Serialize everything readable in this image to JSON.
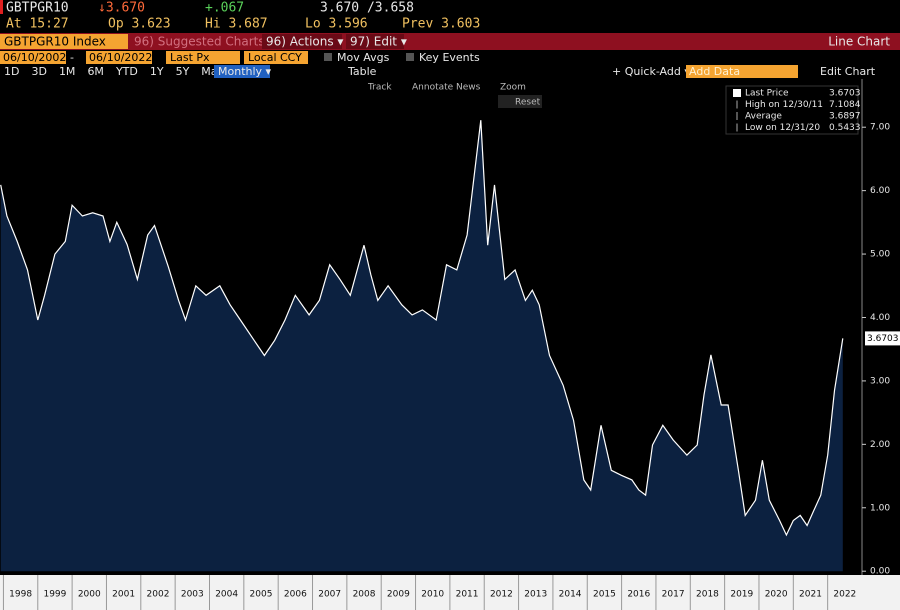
{
  "quote": {
    "ticker": "GBTPGR10",
    "last": "↓3.670",
    "change": "+.067",
    "bid_ask": "3.670 /3.658",
    "time": "At 15:27",
    "open": "Op 3.623",
    "high": "Hi 3.687",
    "low": "Lo 3.596",
    "prev": "Prev 3.603"
  },
  "toolbar": {
    "security": "GBTPGR10 Index",
    "suggested": "96) Suggested Charts",
    "actions": "96) Actions ▾",
    "edit": "97) Edit ▾",
    "chart_type": "Line Chart"
  },
  "controls": {
    "start_date": "06/10/2002",
    "end_date": "06/10/2022",
    "field": "Last Px",
    "currency": "Local CCY",
    "mov_avgs": "Mov Avgs",
    "key_events": "Key Events",
    "periods": [
      "1D",
      "3D",
      "1M",
      "6M",
      "YTD",
      "1Y",
      "5Y",
      "Max"
    ],
    "frequency": "Monthly ▾",
    "table": "Table",
    "quick_add": "+ Quick-Add ▾",
    "add_data": "Add Data",
    "edit_chart": "Edit Chart",
    "tools": [
      "Track",
      "Annotate",
      "News",
      "Zoom",
      "Reset"
    ]
  },
  "chart_data": {
    "type": "area",
    "stats": [
      {
        "label": "Last Price",
        "value": 3.6703
      },
      {
        "label": "High on 12/30/11",
        "value": 7.1084
      },
      {
        "label": "Average",
        "value": 3.6897
      },
      {
        "label": "Low on 12/31/20",
        "value": 0.5433
      }
    ],
    "x": [
      1997.92,
      1998.1,
      1998.4,
      1998.7,
      1999.0,
      1999.2,
      1999.5,
      1999.8,
      2000.0,
      2000.3,
      2000.6,
      2000.9,
      2001.1,
      2001.3,
      2001.6,
      2001.9,
      2002.2,
      2002.4,
      2002.8,
      2003.1,
      2003.3,
      2003.6,
      2003.9,
      2004.3,
      2004.6,
      2004.9,
      2005.3,
      2005.6,
      2005.9,
      2006.2,
      2006.5,
      2006.9,
      2007.2,
      2007.5,
      2007.8,
      2008.1,
      2008.5,
      2008.7,
      2008.9,
      2009.2,
      2009.6,
      2009.9,
      2010.2,
      2010.6,
      2010.9,
      2011.2,
      2011.5,
      2011.9,
      2012.1,
      2012.3,
      2012.6,
      2012.9,
      2013.2,
      2013.4,
      2013.6,
      2013.9,
      2014.3,
      2014.6,
      2014.9,
      2015.1,
      2015.4,
      2015.7,
      2016.0,
      2016.3,
      2016.5,
      2016.7,
      2016.9,
      2017.2,
      2017.5,
      2017.9,
      2018.2,
      2018.4,
      2018.6,
      2018.9,
      2019.1,
      2019.4,
      2019.6,
      2019.9,
      2020.1,
      2020.3,
      2020.6,
      2020.8,
      2021.0,
      2021.2,
      2021.4,
      2021.6,
      2021.8,
      2022.0,
      2022.2,
      2022.44
    ],
    "series": [
      {
        "name": "Last Price",
        "color": "#ffffff",
        "fill": "#0c2140",
        "values": [
          6.09,
          5.6,
          5.2,
          4.75,
          3.96,
          4.35,
          5.0,
          5.2,
          5.77,
          5.6,
          5.65,
          5.6,
          5.2,
          5.5,
          5.15,
          4.6,
          5.3,
          5.45,
          4.8,
          4.27,
          3.96,
          4.5,
          4.35,
          4.5,
          4.2,
          3.96,
          3.64,
          3.4,
          3.64,
          3.96,
          4.35,
          4.04,
          4.27,
          4.83,
          4.6,
          4.35,
          5.14,
          4.67,
          4.27,
          4.5,
          4.2,
          4.04,
          4.12,
          3.96,
          4.83,
          4.75,
          5.3,
          7.11,
          5.14,
          6.09,
          4.6,
          4.75,
          4.27,
          4.43,
          4.2,
          3.4,
          2.93,
          2.38,
          1.44,
          1.28,
          2.3,
          1.59,
          1.51,
          1.44,
          1.28,
          1.2,
          1.99,
          2.3,
          2.07,
          1.83,
          1.99,
          2.78,
          3.41,
          2.62,
          2.62,
          1.59,
          0.88,
          1.12,
          1.75,
          1.12,
          0.8,
          0.57,
          0.8,
          0.88,
          0.72,
          0.96,
          1.2,
          1.83,
          2.85,
          3.67
        ]
      }
    ],
    "xlim": [
      1997.9,
      2023.0
    ],
    "xticks": [
      1998,
      1999,
      2000,
      2001,
      2002,
      2003,
      2004,
      2005,
      2006,
      2007,
      2008,
      2009,
      2010,
      2011,
      2012,
      2013,
      2014,
      2015,
      2016,
      2017,
      2018,
      2019,
      2020,
      2021,
      2022
    ],
    "ylim": [
      -0.06,
      7.76
    ],
    "yticks": [
      {
        "value": 0,
        "label": "0.00"
      },
      {
        "value": 1,
        "label": "1.00"
      },
      {
        "value": 2,
        "label": "2.00"
      },
      {
        "value": 3,
        "label": "3.00"
      },
      {
        "value": 4,
        "label": "4.00"
      },
      {
        "value": 5,
        "label": "5.00"
      },
      {
        "value": 6,
        "label": "6.00"
      },
      {
        "value": 7,
        "label": "7.00"
      }
    ],
    "grid": false
  }
}
